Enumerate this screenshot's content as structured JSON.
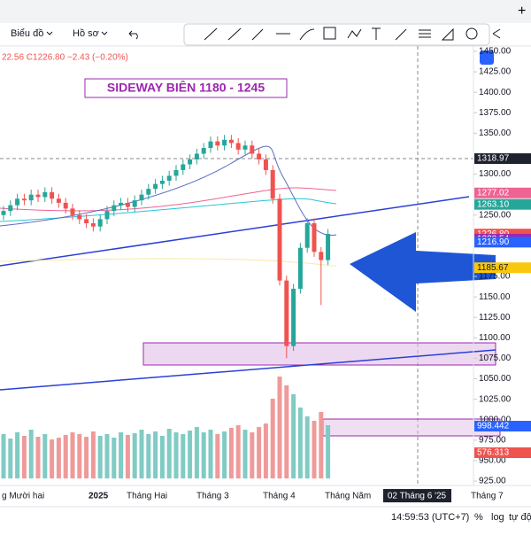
{
  "toolbar": {
    "chart": "Biểu đồ",
    "profile": "Hồ sơ"
  },
  "legend": {
    "ohlc": "22.56 C1226.80 −2.43 (−0.20%)"
  },
  "annotation": "SIDEWAY BIÊN 1180 - 1245",
  "chart": {
    "type": "candlestick",
    "ylim": [
      925,
      1450
    ],
    "yticks": [
      {
        "value": 1450,
        "label": "1450.00"
      },
      {
        "value": 1425,
        "label": "1425.00"
      },
      {
        "value": 1400,
        "label": "1400.00"
      },
      {
        "value": 1375,
        "label": "1375.00"
      },
      {
        "value": 1350,
        "label": "1350.00"
      },
      {
        "value": 1300,
        "label": "1300.00"
      },
      {
        "value": 1250,
        "label": "1250.00"
      },
      {
        "value": 1175,
        "label": "1175.00"
      },
      {
        "value": 1150,
        "label": "1150.00"
      },
      {
        "value": 1125,
        "label": "1125.00"
      },
      {
        "value": 1100,
        "label": "1100.00"
      },
      {
        "value": 1075,
        "label": "1075.00"
      },
      {
        "value": 1050,
        "label": "1050.00"
      },
      {
        "value": 1025,
        "label": "1025.00"
      },
      {
        "value": 1000,
        "label": "1000.00"
      },
      {
        "value": 975,
        "label": "975.00"
      },
      {
        "value": 950,
        "label": "950.00"
      },
      {
        "value": 925,
        "label": "925.00"
      }
    ],
    "open": [
      1250,
      1255,
      1262,
      1270,
      1268,
      1275,
      1272,
      1278,
      1270,
      1265,
      1258,
      1250,
      1245,
      1240,
      1236,
      1245,
      1255,
      1262,
      1265,
      1260,
      1268,
      1275,
      1282,
      1288,
      1292,
      1298,
      1305,
      1312,
      1318,
      1325,
      1332,
      1340,
      1335,
      1342,
      1338,
      1330,
      1335,
      1325,
      1318,
      1305,
      1270,
      1170,
      1090,
      1160,
      1210,
      1240,
      1205,
      1195
    ],
    "high": [
      1261,
      1268,
      1276,
      1276,
      1281,
      1281,
      1284,
      1284,
      1276,
      1271,
      1264,
      1256,
      1251,
      1246,
      1251,
      1261,
      1268,
      1271,
      1271,
      1274,
      1281,
      1288,
      1294,
      1298,
      1304,
      1311,
      1318,
      1324,
      1331,
      1338,
      1346,
      1346,
      1348,
      1348,
      1344,
      1341,
      1341,
      1331,
      1324,
      1311,
      1276,
      1176,
      1166,
      1216,
      1246,
      1246,
      1211,
      1233
    ],
    "low": [
      1244,
      1249,
      1256,
      1262,
      1262,
      1266,
      1266,
      1264,
      1259,
      1252,
      1244,
      1239,
      1234,
      1230,
      1230,
      1239,
      1249,
      1256,
      1254,
      1254,
      1262,
      1269,
      1276,
      1282,
      1286,
      1292,
      1299,
      1306,
      1312,
      1319,
      1326,
      1329,
      1329,
      1332,
      1324,
      1324,
      1319,
      1312,
      1299,
      1264,
      1164,
      1075,
      1084,
      1154,
      1204,
      1199,
      1140,
      1189
    ],
    "close": [
      1255,
      1262,
      1270,
      1268,
      1275,
      1272,
      1278,
      1270,
      1265,
      1258,
      1250,
      1245,
      1240,
      1236,
      1245,
      1255,
      1262,
      1265,
      1260,
      1268,
      1275,
      1282,
      1288,
      1292,
      1298,
      1305,
      1312,
      1318,
      1325,
      1332,
      1340,
      1335,
      1342,
      1338,
      1330,
      1335,
      1325,
      1318,
      1305,
      1270,
      1170,
      1090,
      1160,
      1210,
      1240,
      1205,
      1195,
      1227
    ],
    "volume": [
      50,
      45,
      52,
      48,
      55,
      47,
      50,
      44,
      46,
      49,
      52,
      50,
      47,
      53,
      48,
      50,
      46,
      52,
      49,
      51,
      55,
      50,
      53,
      48,
      56,
      52,
      50,
      54,
      58,
      52,
      55,
      50,
      53,
      57,
      60,
      55,
      52,
      58,
      62,
      90,
      115,
      105,
      95,
      80,
      70,
      65,
      75,
      60
    ],
    "price_labels": [
      {
        "value": 1318.97,
        "color": "#1e222d"
      },
      {
        "value": 1277.02,
        "label": "1277.02",
        "color": "#f06292"
      },
      {
        "value": 1263.1,
        "label": "1263.10",
        "color": "#26a69a"
      },
      {
        "value": 1226.8,
        "label": "1226.80",
        "color": "#ef5350"
      },
      {
        "value": 1220.54,
        "color": "#9c27b0"
      },
      {
        "value": 1216.9,
        "label": "1216.90",
        "color": "#2962ff"
      },
      {
        "value": 1185.67,
        "color": "#f9c80e"
      }
    ],
    "volume_labels": [
      {
        "label": "998.442",
        "color": "#2962ff"
      },
      {
        "label": "576.313",
        "color": "#ef5350"
      }
    ],
    "xlabels": [
      "g Mười hai",
      "2025",
      "Tháng Hai",
      "Tháng 3",
      "Tháng 4",
      "Tháng Năm",
      "Tháng 7"
    ],
    "cursor_date": "02 Tháng 6 '25"
  },
  "status": {
    "time": "14:59:53 (UTC+7)",
    "percent": "%",
    "log": "log",
    "auto": "tự độ"
  }
}
